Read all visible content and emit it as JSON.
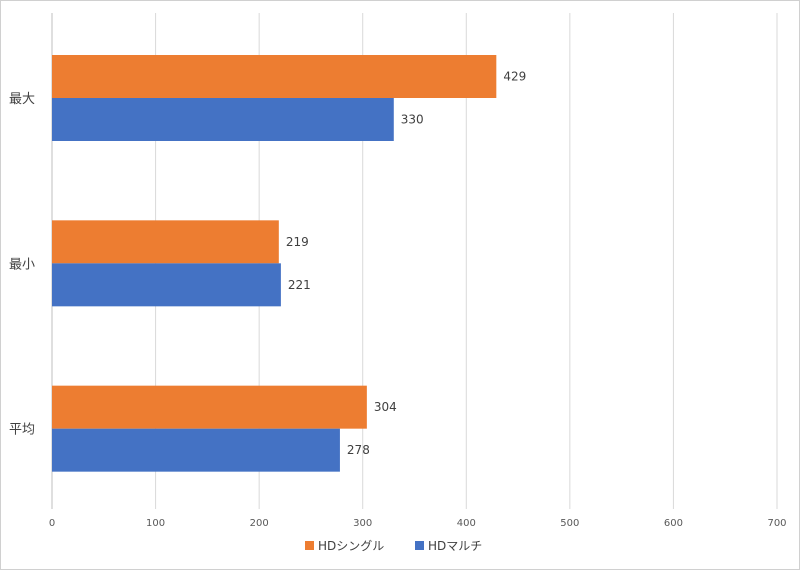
{
  "chart_data": {
    "type": "bar",
    "orientation": "horizontal",
    "categories": [
      "最大",
      "最小",
      "平均"
    ],
    "series": [
      {
        "name": "HDシングル",
        "color": "#ED7D31",
        "values": [
          429,
          219,
          304
        ]
      },
      {
        "name": "HDマルチ",
        "color": "#4472C4",
        "values": [
          330,
          221,
          278
        ]
      }
    ],
    "xlim": [
      0,
      700
    ],
    "xticks": [
      0,
      100,
      200,
      300,
      400,
      500,
      600,
      700
    ],
    "xtick_labels": [
      "0",
      "100",
      "200",
      "300",
      "400",
      "500",
      "600",
      "700"
    ],
    "grid": true,
    "legend_position": "bottom",
    "title": "",
    "xlabel": "",
    "ylabel": ""
  }
}
